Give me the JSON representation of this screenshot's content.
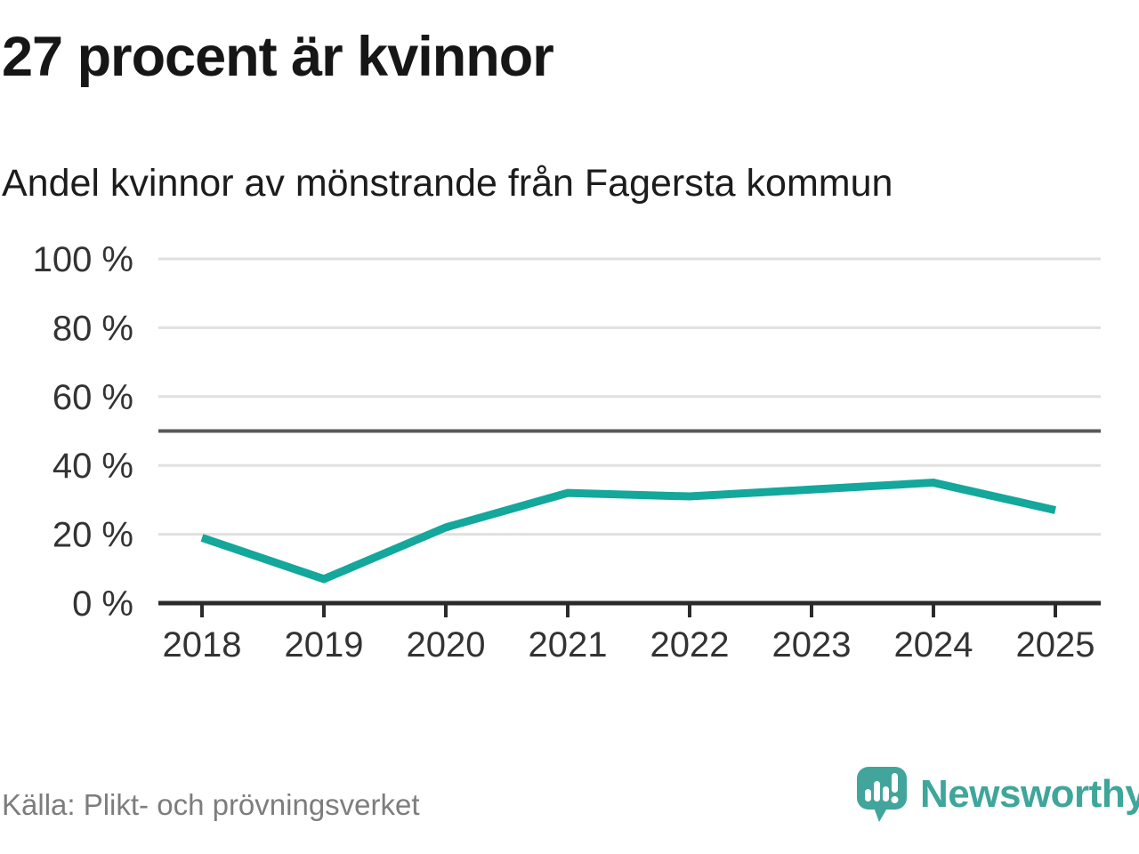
{
  "header": {
    "title": "27 procent är kvinnor",
    "subtitle": "Andel kvinnor av mönstrande från Fagersta kommun"
  },
  "chart_data": {
    "type": "line",
    "title": "27 procent är kvinnor",
    "subtitle": "Andel kvinnor av mönstrande från Fagersta kommun",
    "x": [
      "2018",
      "2019",
      "2020",
      "2021",
      "2022",
      "2023",
      "2024",
      "2025"
    ],
    "series": [
      {
        "name": "Andel kvinnor av mönstrande",
        "values": [
          19,
          7,
          22,
          32,
          31,
          33,
          35,
          27
        ]
      }
    ],
    "unit": "%",
    "ylim": [
      0,
      100
    ],
    "yticks": [
      0,
      20,
      40,
      60,
      80,
      100
    ],
    "ytick_label_suffix": " %",
    "reference_line_y": 50,
    "grid": true,
    "legend": "none"
  },
  "footer": {
    "source": "Källa: Plikt- och prövningsverket",
    "brand_name": "Newsworthy"
  },
  "colors": {
    "accent_teal": "#14a79b",
    "logo_teal": "#41a59b",
    "title_text": "#161616",
    "axis_text": "#333333",
    "muted_text": "#7d7d7d",
    "gridline": "#e0e0e0",
    "axis_line": "#2b2b2b",
    "reference_line": "#595959",
    "background": "#ffffff"
  }
}
